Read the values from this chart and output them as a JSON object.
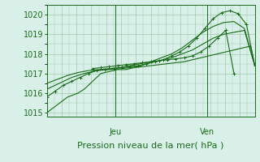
{
  "background_color": "#d8f0e8",
  "plot_bg_color": "#d8f0e8",
  "line_color": "#1a6b1a",
  "grid_color": "#a0c8b0",
  "text_color": "#1a6b1a",
  "ylim": [
    1014.8,
    1020.5
  ],
  "yticks": [
    1015,
    1016,
    1017,
    1018,
    1019,
    1020
  ],
  "xlabel": "Pression niveau de la mer( hPa )",
  "day_labels": [
    "Jeu",
    "Ven"
  ],
  "day_positions": [
    0.33,
    0.77
  ],
  "label_fontsize": 8,
  "tick_fontsize": 7,
  "lines": [
    {
      "x": [
        0.0,
        0.05,
        0.1,
        0.15,
        0.18,
        0.22,
        0.26,
        0.3,
        0.34,
        0.38,
        0.42,
        0.46,
        0.5,
        0.54,
        0.58,
        0.62,
        0.66,
        0.7,
        0.74,
        0.78,
        0.82,
        0.86,
        0.9,
        0.94,
        0.98,
        1.0
      ],
      "y": [
        1015.0,
        1015.4,
        1015.8,
        1016.0,
        1016.2,
        1016.6,
        1017.0,
        1017.1,
        1017.2,
        1017.2,
        1017.3,
        1017.35,
        1017.4,
        1017.45,
        1017.5,
        1017.55,
        1017.6,
        1017.7,
        1017.8,
        1017.9,
        1018.0,
        1018.1,
        1018.2,
        1018.3,
        1018.4,
        1017.4
      ],
      "marker": false
    },
    {
      "x": [
        0.0,
        0.06,
        0.12,
        0.18,
        0.24,
        0.3,
        0.36,
        0.4,
        0.44,
        0.48,
        0.52,
        0.56,
        0.6,
        0.65,
        0.7,
        0.75,
        0.8,
        0.85,
        0.9,
        0.95,
        1.0
      ],
      "y": [
        1016.2,
        1016.5,
        1016.8,
        1017.0,
        1017.15,
        1017.2,
        1017.25,
        1017.3,
        1017.35,
        1017.5,
        1017.6,
        1017.7,
        1017.8,
        1018.0,
        1018.2,
        1018.5,
        1018.8,
        1019.0,
        1019.1,
        1019.2,
        1017.4
      ],
      "marker": false
    },
    {
      "x": [
        0.0,
        0.05,
        0.1,
        0.15,
        0.2,
        0.25,
        0.3,
        0.35,
        0.4,
        0.45,
        0.5,
        0.55,
        0.6,
        0.65,
        0.7,
        0.75,
        0.8,
        0.85,
        0.9,
        0.95,
        1.0
      ],
      "y": [
        1016.5,
        1016.7,
        1016.9,
        1017.05,
        1017.15,
        1017.2,
        1017.25,
        1017.3,
        1017.4,
        1017.5,
        1017.6,
        1017.8,
        1018.0,
        1018.3,
        1018.7,
        1019.1,
        1019.4,
        1019.6,
        1019.65,
        1019.3,
        1017.4
      ],
      "marker": false
    },
    {
      "x": [
        0.0,
        0.04,
        0.08,
        0.12,
        0.16,
        0.2,
        0.24,
        0.28,
        0.32,
        0.36,
        0.4,
        0.44,
        0.48,
        0.52,
        0.56,
        0.6,
        0.64,
        0.68,
        0.72,
        0.76,
        0.8,
        0.84,
        0.88,
        0.92,
        0.96,
        1.0
      ],
      "y": [
        1015.8,
        1016.1,
        1016.4,
        1016.6,
        1016.8,
        1017.0,
        1017.15,
        1017.2,
        1017.25,
        1017.3,
        1017.35,
        1017.4,
        1017.5,
        1017.6,
        1017.7,
        1017.9,
        1018.1,
        1018.4,
        1018.8,
        1019.3,
        1019.8,
        1020.1,
        1020.2,
        1020.05,
        1019.5,
        1017.4
      ],
      "marker": true
    },
    {
      "x": [
        0.22,
        0.26,
        0.3,
        0.34,
        0.38,
        0.42,
        0.46,
        0.5,
        0.54,
        0.58,
        0.62,
        0.66,
        0.7,
        0.74,
        0.78,
        0.82,
        0.86,
        0.9
      ],
      "y": [
        1017.25,
        1017.3,
        1017.35,
        1017.4,
        1017.45,
        1017.5,
        1017.55,
        1017.6,
        1017.65,
        1017.7,
        1017.75,
        1017.8,
        1017.9,
        1018.1,
        1018.4,
        1018.8,
        1019.2,
        1017.0
      ],
      "marker": true
    }
  ]
}
